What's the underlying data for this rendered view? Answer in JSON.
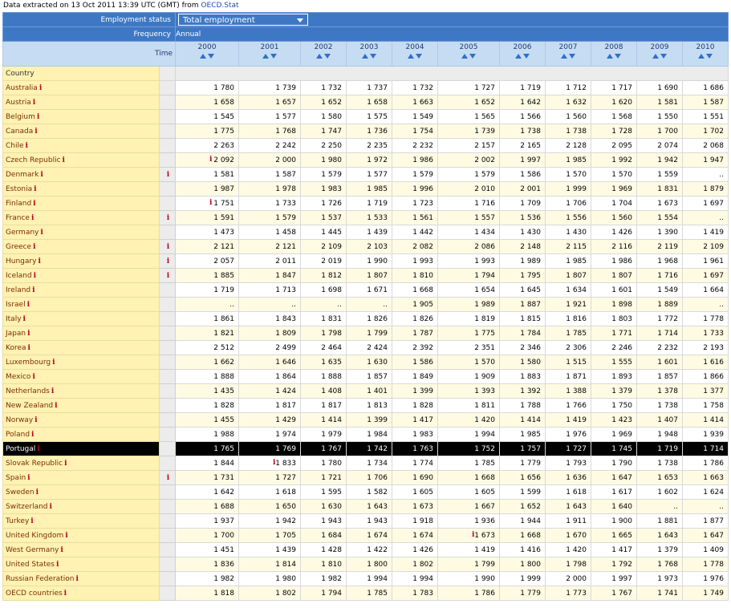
{
  "header": {
    "prefix": "Data extracted on 13 Oct 2011 13:39 UTC (GMT) from ",
    "source": "OECD.Stat"
  },
  "filters": {
    "employment_label": "Employment status",
    "employment_value": "Total employment",
    "frequency_label": "Frequency",
    "frequency_value": "Annual",
    "time_label": "Time",
    "country_label": "Country"
  },
  "colors": {
    "accent": "#3e78c4",
    "country_bg": "#fff2b3",
    "flag": "#c0001a"
  },
  "info_icon": "i",
  "years": [
    "2000",
    "2001",
    "2002",
    "2003",
    "2004",
    "2005",
    "2006",
    "2007",
    "2008",
    "2009",
    "2010"
  ],
  "rows": [
    {
      "country": "Australia",
      "flag": false,
      "values": [
        "1 780",
        "1 739",
        "1 732",
        "1 737",
        "1 732",
        "1 727",
        "1 719",
        "1 712",
        "1 717",
        "1 690",
        "1 686"
      ]
    },
    {
      "country": "Austria",
      "flag": false,
      "values": [
        "1 658",
        "1 657",
        "1 652",
        "1 658",
        "1 663",
        "1 652",
        "1 642",
        "1 632",
        "1 620",
        "1 581",
        "1 587"
      ]
    },
    {
      "country": "Belgium",
      "flag": false,
      "values": [
        "1 545",
        "1 577",
        "1 580",
        "1 575",
        "1 549",
        "1 565",
        "1 566",
        "1 560",
        "1 568",
        "1 550",
        "1 551"
      ]
    },
    {
      "country": "Canada",
      "flag": false,
      "values": [
        "1 775",
        "1 768",
        "1 747",
        "1 736",
        "1 754",
        "1 739",
        "1 738",
        "1 738",
        "1 728",
        "1 700",
        "1 702"
      ]
    },
    {
      "country": "Chile",
      "flag": false,
      "values": [
        "2 263",
        "2 242",
        "2 250",
        "2 235",
        "2 232",
        "2 157",
        "2 165",
        "2 128",
        "2 095",
        "2 074",
        "2 068"
      ]
    },
    {
      "country": "Czech Republic",
      "flag": false,
      "values": [
        "2 092",
        "2 000",
        "1 980",
        "1 972",
        "1 986",
        "2 002",
        "1 997",
        "1 985",
        "1 992",
        "1 942",
        "1 947"
      ],
      "marks": [
        0
      ]
    },
    {
      "country": "Denmark",
      "flag": true,
      "values": [
        "1 581",
        "1 587",
        "1 579",
        "1 577",
        "1 579",
        "1 579",
        "1 586",
        "1 570",
        "1 570",
        "1 559",
        ".."
      ]
    },
    {
      "country": "Estonia",
      "flag": false,
      "values": [
        "1 987",
        "1 978",
        "1 983",
        "1 985",
        "1 996",
        "2 010",
        "2 001",
        "1 999",
        "1 969",
        "1 831",
        "1 879"
      ]
    },
    {
      "country": "Finland",
      "flag": false,
      "values": [
        "1 751",
        "1 733",
        "1 726",
        "1 719",
        "1 723",
        "1 716",
        "1 709",
        "1 706",
        "1 704",
        "1 673",
        "1 697"
      ],
      "marks": [
        0
      ]
    },
    {
      "country": "France",
      "flag": true,
      "values": [
        "1 591",
        "1 579",
        "1 537",
        "1 533",
        "1 561",
        "1 557",
        "1 536",
        "1 556",
        "1 560",
        "1 554",
        ".."
      ]
    },
    {
      "country": "Germany",
      "flag": false,
      "values": [
        "1 473",
        "1 458",
        "1 445",
        "1 439",
        "1 442",
        "1 434",
        "1 430",
        "1 430",
        "1 426",
        "1 390",
        "1 419"
      ]
    },
    {
      "country": "Greece",
      "flag": true,
      "values": [
        "2 121",
        "2 121",
        "2 109",
        "2 103",
        "2 082",
        "2 086",
        "2 148",
        "2 115",
        "2 116",
        "2 119",
        "2 109"
      ]
    },
    {
      "country": "Hungary",
      "flag": true,
      "values": [
        "2 057",
        "2 011",
        "2 019",
        "1 990",
        "1 993",
        "1 993",
        "1 989",
        "1 985",
        "1 986",
        "1 968",
        "1 961"
      ]
    },
    {
      "country": "Iceland",
      "flag": true,
      "values": [
        "1 885",
        "1 847",
        "1 812",
        "1 807",
        "1 810",
        "1 794",
        "1 795",
        "1 807",
        "1 807",
        "1 716",
        "1 697"
      ]
    },
    {
      "country": "Ireland",
      "flag": false,
      "values": [
        "1 719",
        "1 713",
        "1 698",
        "1 671",
        "1 668",
        "1 654",
        "1 645",
        "1 634",
        "1 601",
        "1 549",
        "1 664"
      ]
    },
    {
      "country": "Israel",
      "flag": false,
      "values": [
        "..",
        "..",
        "..",
        "..",
        "1 905",
        "1 989",
        "1 887",
        "1 921",
        "1 898",
        "1 889",
        ".."
      ]
    },
    {
      "country": "Italy",
      "flag": false,
      "values": [
        "1 861",
        "1 843",
        "1 831",
        "1 826",
        "1 826",
        "1 819",
        "1 815",
        "1 816",
        "1 803",
        "1 772",
        "1 778"
      ]
    },
    {
      "country": "Japan",
      "flag": false,
      "values": [
        "1 821",
        "1 809",
        "1 798",
        "1 799",
        "1 787",
        "1 775",
        "1 784",
        "1 785",
        "1 771",
        "1 714",
        "1 733"
      ]
    },
    {
      "country": "Korea",
      "flag": false,
      "values": [
        "2 512",
        "2 499",
        "2 464",
        "2 424",
        "2 392",
        "2 351",
        "2 346",
        "2 306",
        "2 246",
        "2 232",
        "2 193"
      ]
    },
    {
      "country": "Luxembourg",
      "flag": false,
      "values": [
        "1 662",
        "1 646",
        "1 635",
        "1 630",
        "1 586",
        "1 570",
        "1 580",
        "1 515",
        "1 555",
        "1 601",
        "1 616"
      ]
    },
    {
      "country": "Mexico",
      "flag": false,
      "values": [
        "1 888",
        "1 864",
        "1 888",
        "1 857",
        "1 849",
        "1 909",
        "1 883",
        "1 871",
        "1 893",
        "1 857",
        "1 866"
      ]
    },
    {
      "country": "Netherlands",
      "flag": false,
      "values": [
        "1 435",
        "1 424",
        "1 408",
        "1 401",
        "1 399",
        "1 393",
        "1 392",
        "1 388",
        "1 379",
        "1 378",
        "1 377"
      ]
    },
    {
      "country": "New Zealand",
      "flag": false,
      "values": [
        "1 828",
        "1 817",
        "1 817",
        "1 813",
        "1 828",
        "1 811",
        "1 788",
        "1 766",
        "1 750",
        "1 738",
        "1 758"
      ]
    },
    {
      "country": "Norway",
      "flag": false,
      "values": [
        "1 455",
        "1 429",
        "1 414",
        "1 399",
        "1 417",
        "1 420",
        "1 414",
        "1 419",
        "1 423",
        "1 407",
        "1 414"
      ]
    },
    {
      "country": "Poland",
      "flag": false,
      "values": [
        "1 988",
        "1 974",
        "1 979",
        "1 984",
        "1 983",
        "1 994",
        "1 985",
        "1 976",
        "1 969",
        "1 948",
        "1 939"
      ]
    },
    {
      "country": "Portugal",
      "flag": false,
      "highlight": true,
      "values": [
        "1 765",
        "1 769",
        "1 767",
        "1 742",
        "1 763",
        "1 752",
        "1 757",
        "1 727",
        "1 745",
        "1 719",
        "1 714"
      ]
    },
    {
      "country": "Slovak Republic",
      "flag": false,
      "values": [
        "1 844",
        "1 833",
        "1 780",
        "1 734",
        "1 774",
        "1 785",
        "1 779",
        "1 793",
        "1 790",
        "1 738",
        "1 786"
      ],
      "marks": [
        1
      ]
    },
    {
      "country": "Spain",
      "flag": true,
      "values": [
        "1 731",
        "1 727",
        "1 721",
        "1 706",
        "1 690",
        "1 668",
        "1 656",
        "1 636",
        "1 647",
        "1 653",
        "1 663"
      ]
    },
    {
      "country": "Sweden",
      "flag": false,
      "values": [
        "1 642",
        "1 618",
        "1 595",
        "1 582",
        "1 605",
        "1 605",
        "1 599",
        "1 618",
        "1 617",
        "1 602",
        "1 624"
      ]
    },
    {
      "country": "Switzerland",
      "flag": false,
      "values": [
        "1 688",
        "1 650",
        "1 630",
        "1 643",
        "1 673",
        "1 667",
        "1 652",
        "1 643",
        "1 640",
        "..",
        ".."
      ]
    },
    {
      "country": "Turkey",
      "flag": false,
      "values": [
        "1 937",
        "1 942",
        "1 943",
        "1 943",
        "1 918",
        "1 936",
        "1 944",
        "1 911",
        "1 900",
        "1 881",
        "1 877"
      ]
    },
    {
      "country": "United Kingdom",
      "flag": false,
      "values": [
        "1 700",
        "1 705",
        "1 684",
        "1 674",
        "1 674",
        "1 673",
        "1 668",
        "1 670",
        "1 665",
        "1 643",
        "1 647"
      ],
      "marks": [
        5
      ]
    },
    {
      "country": "West Germany",
      "flag": false,
      "values": [
        "1 451",
        "1 439",
        "1 428",
        "1 422",
        "1 426",
        "1 419",
        "1 416",
        "1 420",
        "1 417",
        "1 379",
        "1 409"
      ]
    },
    {
      "country": "United States",
      "flag": false,
      "values": [
        "1 836",
        "1 814",
        "1 810",
        "1 800",
        "1 802",
        "1 799",
        "1 800",
        "1 798",
        "1 792",
        "1 768",
        "1 778"
      ]
    },
    {
      "country": "Russian Federation",
      "flag": false,
      "values": [
        "1 982",
        "1 980",
        "1 982",
        "1 994",
        "1 994",
        "1 990",
        "1 999",
        "2 000",
        "1 997",
        "1 973",
        "1 976"
      ]
    },
    {
      "country": "OECD countries",
      "flag": false,
      "values": [
        "1 818",
        "1 802",
        "1 794",
        "1 785",
        "1 783",
        "1 786",
        "1 779",
        "1 773",
        "1 767",
        "1 741",
        "1 749"
      ]
    }
  ]
}
